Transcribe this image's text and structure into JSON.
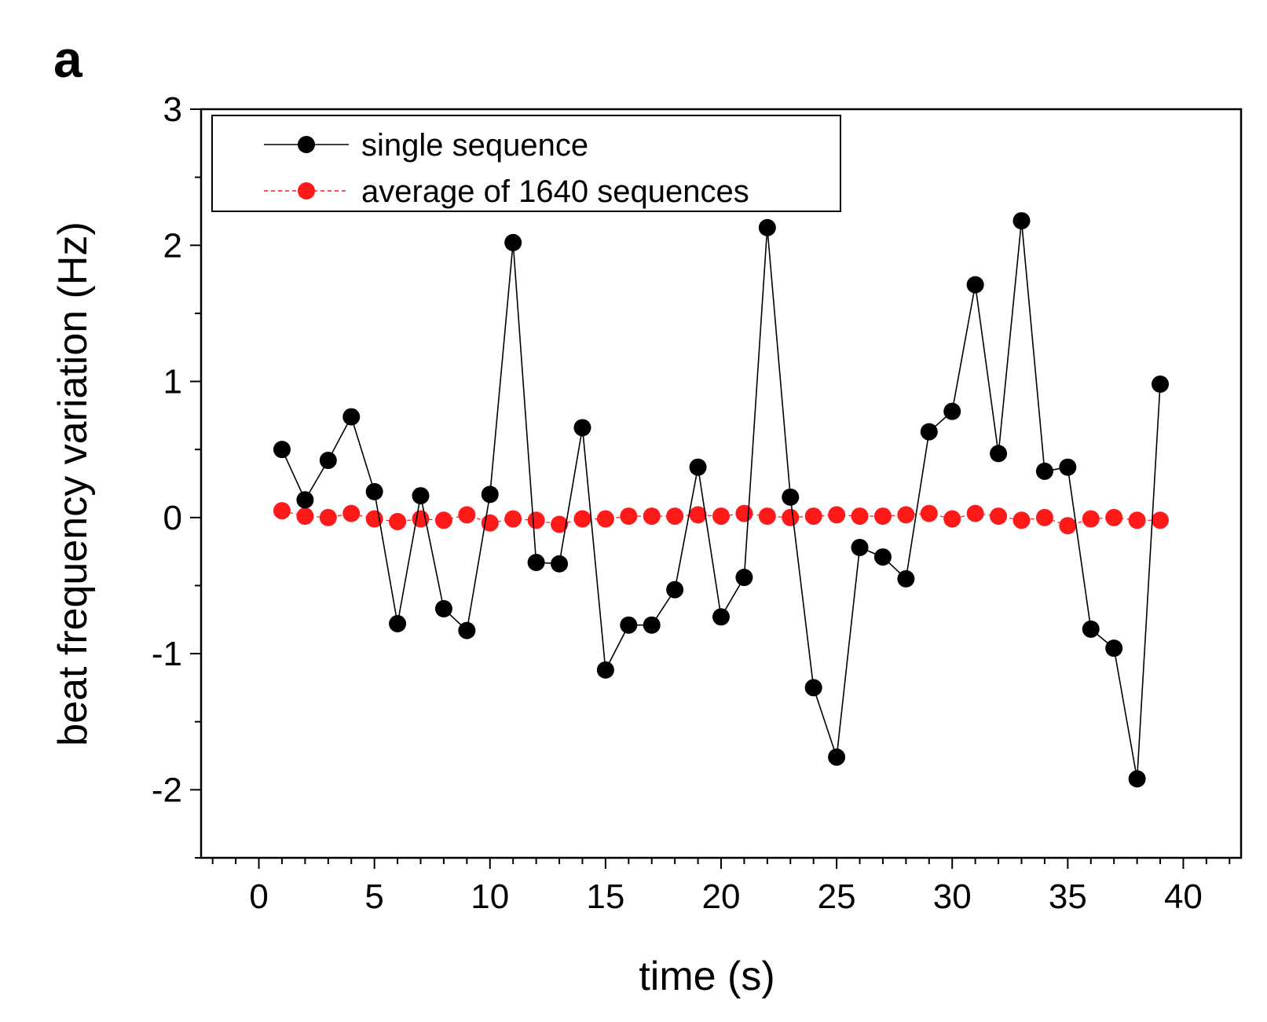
{
  "chart_data": {
    "type": "line",
    "panel_label": "a",
    "title": "",
    "xlabel": "time (s)",
    "ylabel": "beat frequency variation (Hz)",
    "xlim": [
      -2.5,
      42.5
    ],
    "ylim": [
      -2.5,
      3
    ],
    "xticks": [
      0,
      5,
      10,
      15,
      20,
      25,
      30,
      35,
      40
    ],
    "xtick_labels": [
      "0",
      "5",
      "10",
      "15",
      "20",
      "25",
      "30",
      "35",
      "40"
    ],
    "yticks": [
      -2,
      -1,
      0,
      1,
      2,
      3
    ],
    "ytick_labels": [
      "-2",
      "-1",
      "0",
      "1",
      "2",
      "3"
    ],
    "grid": false,
    "legend_position": "top-left",
    "series": [
      {
        "name": "single sequence",
        "color": "#000000",
        "x": [
          1,
          2,
          3,
          4,
          5,
          6,
          7,
          8,
          9,
          10,
          11,
          12,
          13,
          14,
          15,
          16,
          17,
          18,
          19,
          20,
          21,
          22,
          23,
          24,
          25,
          26,
          27,
          28,
          29,
          30,
          31,
          32,
          33,
          34,
          35,
          36,
          37,
          38,
          39
        ],
        "values": [
          0.5,
          0.13,
          0.42,
          0.74,
          0.19,
          -0.78,
          0.16,
          -0.67,
          -0.83,
          0.17,
          2.02,
          -0.33,
          -0.34,
          0.66,
          -1.12,
          -0.79,
          -0.79,
          -0.53,
          0.37,
          -0.73,
          -0.44,
          2.13,
          0.15,
          -1.25,
          -1.76,
          -0.22,
          -0.29,
          -0.45,
          0.63,
          0.78,
          1.71,
          0.47,
          2.18,
          0.34,
          0.37,
          -0.82,
          -0.96,
          -1.92,
          0.98
        ]
      },
      {
        "name": "average of 1640 sequences",
        "color": "#ff1a1a",
        "x": [
          1,
          2,
          3,
          4,
          5,
          6,
          7,
          8,
          9,
          10,
          11,
          12,
          13,
          14,
          15,
          16,
          17,
          18,
          19,
          20,
          21,
          22,
          23,
          24,
          25,
          26,
          27,
          28,
          29,
          30,
          31,
          32,
          33,
          34,
          35,
          36,
          37,
          38,
          39
        ],
        "values": [
          0.05,
          0.01,
          0.0,
          0.03,
          -0.01,
          -0.03,
          -0.01,
          -0.02,
          0.02,
          -0.04,
          -0.01,
          -0.02,
          -0.05,
          -0.01,
          -0.01,
          0.01,
          0.01,
          0.01,
          0.02,
          0.01,
          0.03,
          0.01,
          0.0,
          0.01,
          0.02,
          0.01,
          0.01,
          0.02,
          0.03,
          -0.01,
          0.03,
          0.01,
          -0.02,
          0.0,
          -0.06,
          -0.01,
          0.0,
          -0.02,
          -0.02
        ]
      }
    ]
  }
}
